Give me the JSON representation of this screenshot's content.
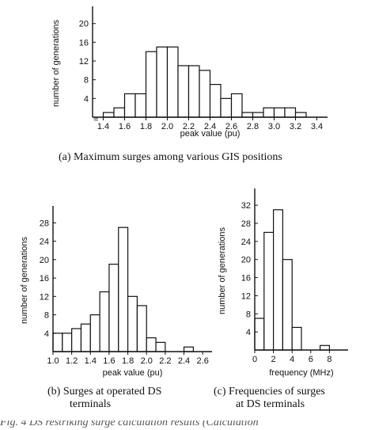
{
  "chart_data": [
    {
      "type": "bar",
      "panel": "a",
      "x": [
        1.45,
        1.55,
        1.65,
        1.75,
        1.85,
        1.95,
        2.05,
        2.15,
        2.25,
        2.35,
        2.45,
        2.55,
        2.65,
        2.75,
        2.85,
        2.95,
        3.05,
        3.15,
        3.25
      ],
      "values": [
        1,
        2,
        5,
        5,
        14,
        15,
        15,
        11,
        11,
        10,
        7,
        4,
        5,
        1,
        1,
        2,
        2,
        2,
        1
      ],
      "bin_width": 0.1,
      "xlabel": "peak value (pu)",
      "ylabel": "number of generations",
      "xlim": [
        1.3,
        3.5
      ],
      "ylim": [
        0,
        23
      ],
      "xticks": [
        "1.4",
        "1.6",
        "1.8",
        "2.0",
        "2.2",
        "2.4",
        "2.6",
        "2.8",
        "3.0",
        "3.2",
        "3.4"
      ],
      "yticks": [
        "4",
        "8",
        "12",
        "16",
        "20"
      ],
      "axis_break_mark": "≈",
      "caption": "(a)  Maximum surges among various GIS positions"
    },
    {
      "type": "bar",
      "panel": "b",
      "x": [
        1.05,
        1.15,
        1.25,
        1.35,
        1.45,
        1.55,
        1.65,
        1.75,
        1.85,
        1.95,
        2.05,
        2.15,
        2.25,
        2.35,
        2.45
      ],
      "values": [
        4,
        4,
        5,
        6,
        8,
        13,
        19,
        27,
        12,
        10,
        3,
        2,
        0,
        0,
        1
      ],
      "bin_width": 0.1,
      "xlabel": "peak value (pu)",
      "ylabel": "number of generations",
      "xlim": [
        1.0,
        2.7
      ],
      "ylim": [
        0,
        31
      ],
      "xticks": [
        "1.0",
        "1.2",
        "1.4",
        "1.6",
        "1.8",
        "2.0",
        "2.2",
        "2.4",
        "2.6"
      ],
      "yticks": [
        "4",
        "8",
        "12",
        "16",
        "20",
        "24",
        "28"
      ],
      "caption": [
        "(b)  Surges at operated DS",
        "terminals"
      ]
    },
    {
      "type": "bar",
      "panel": "c",
      "x": [
        0.5,
        1.5,
        2.5,
        3.5,
        4.5,
        5.5,
        6.5,
        7.5
      ],
      "values": [
        7,
        26,
        31,
        20,
        5,
        0,
        0,
        1
      ],
      "bin_width": 1,
      "xlabel": "frequency (MHz)",
      "ylabel": "number of generations",
      "xlim": [
        0,
        10
      ],
      "ylim": [
        0,
        35
      ],
      "xticks": [
        "0",
        "2",
        "4",
        "6",
        "8"
      ],
      "yticks": [
        "4",
        "8",
        "12",
        "16",
        "20",
        "24",
        "28",
        "32"
      ],
      "caption": [
        "(c)  Frequencies of surges",
        "at DS terminals"
      ]
    }
  ],
  "figure_caption": "Fig. 4  DS restriking surge calculation results (Calculation"
}
